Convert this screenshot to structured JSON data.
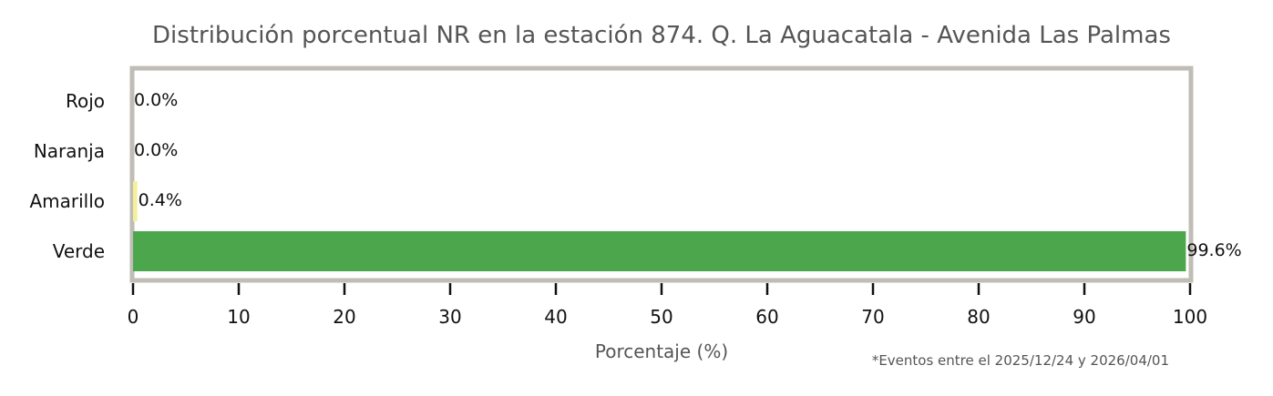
{
  "chart_data": {
    "type": "bar",
    "orientation": "horizontal",
    "title": "Distribución porcentual NR en la estación 874. Q. La Aguacatala - Avenida Las Palmas",
    "xlabel": "Porcentaje (%)",
    "ylabel": "",
    "xlim": [
      0,
      100
    ],
    "xticks": [
      "0",
      "10",
      "20",
      "30",
      "40",
      "50",
      "60",
      "70",
      "80",
      "90",
      "100"
    ],
    "categories": [
      "Rojo",
      "Naranja",
      "Amarillo",
      "Verde"
    ],
    "values": [
      0.0,
      0.0,
      0.4,
      99.6
    ],
    "value_labels": [
      "0.0%",
      "0.0%",
      "0.4%",
      "99.6%"
    ],
    "colors": [
      "#e53935",
      "#fb8c00",
      "#f5ef9a",
      "#4ca64c"
    ],
    "grid": false,
    "legend": "none",
    "footnote": "*Eventos entre el 2025/12/24 y 2026/04/01"
  }
}
